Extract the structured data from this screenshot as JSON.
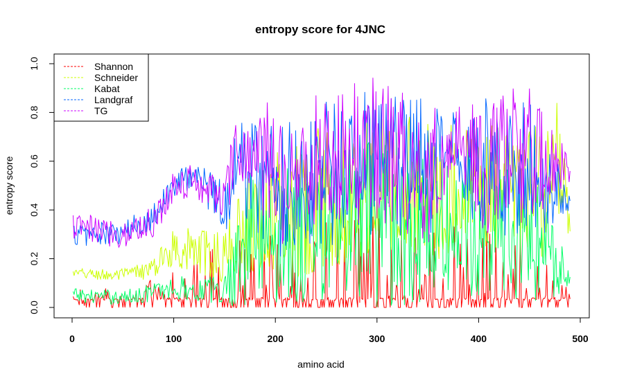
{
  "chart_data": {
    "type": "line",
    "title": "entropy score for  4JNC",
    "xlabel": "amino acid",
    "ylabel": "entropy score",
    "xlim": [
      0,
      500
    ],
    "ylim": [
      0,
      1.0
    ],
    "x_ticks": [
      "0",
      "100",
      "200",
      "300",
      "400",
      "500"
    ],
    "y_ticks": [
      "0.0",
      "0.2",
      "0.4",
      "0.6",
      "0.8",
      "1.0"
    ],
    "legend_position": "top-left",
    "grid": false,
    "n_points": 490,
    "series": [
      {
        "name": "Shannon",
        "color": "#ff0000",
        "profile": [
          [
            1,
            0.03,
            0.06
          ],
          [
            50,
            0.03,
            0.06
          ],
          [
            100,
            0.03,
            0.12
          ],
          [
            150,
            0.04,
            0.25
          ],
          [
            200,
            0.03,
            0.3
          ],
          [
            250,
            0.03,
            0.32
          ],
          [
            300,
            0.03,
            0.38
          ],
          [
            350,
            0.03,
            0.33
          ],
          [
            400,
            0.03,
            0.3
          ],
          [
            450,
            0.03,
            0.3
          ],
          [
            490,
            0.03,
            0.15
          ]
        ]
      },
      {
        "name": "Schneider",
        "color": "#ccff00",
        "profile": [
          [
            1,
            0.14,
            0.02
          ],
          [
            50,
            0.13,
            0.03
          ],
          [
            80,
            0.16,
            0.04
          ],
          [
            100,
            0.25,
            0.08
          ],
          [
            150,
            0.2,
            0.12
          ],
          [
            170,
            0.35,
            0.2
          ],
          [
            200,
            0.38,
            0.28
          ],
          [
            250,
            0.45,
            0.3
          ],
          [
            300,
            0.5,
            0.3
          ],
          [
            350,
            0.48,
            0.3
          ],
          [
            400,
            0.5,
            0.25
          ],
          [
            450,
            0.45,
            0.3
          ],
          [
            480,
            0.55,
            0.3
          ],
          [
            490,
            0.3,
            0.05
          ]
        ]
      },
      {
        "name": "Kabat",
        "color": "#00ff66",
        "profile": [
          [
            1,
            0.05,
            0.03
          ],
          [
            50,
            0.04,
            0.03
          ],
          [
            100,
            0.08,
            0.05
          ],
          [
            150,
            0.07,
            0.06
          ],
          [
            170,
            0.3,
            0.3
          ],
          [
            200,
            0.3,
            0.3
          ],
          [
            250,
            0.3,
            0.32
          ],
          [
            300,
            0.35,
            0.35
          ],
          [
            350,
            0.3,
            0.3
          ],
          [
            400,
            0.35,
            0.3
          ],
          [
            450,
            0.3,
            0.3
          ],
          [
            490,
            0.12,
            0.05
          ]
        ]
      },
      {
        "name": "Landgraf",
        "color": "#0066ff",
        "profile": [
          [
            1,
            0.3,
            0.05
          ],
          [
            50,
            0.3,
            0.05
          ],
          [
            80,
            0.38,
            0.06
          ],
          [
            100,
            0.5,
            0.06
          ],
          [
            120,
            0.55,
            0.06
          ],
          [
            150,
            0.42,
            0.12
          ],
          [
            165,
            0.6,
            0.2
          ],
          [
            200,
            0.5,
            0.3
          ],
          [
            250,
            0.55,
            0.3
          ],
          [
            300,
            0.6,
            0.3
          ],
          [
            350,
            0.55,
            0.3
          ],
          [
            370,
            0.7,
            0.1
          ],
          [
            400,
            0.6,
            0.3
          ],
          [
            450,
            0.55,
            0.3
          ],
          [
            490,
            0.44,
            0.05
          ]
        ]
      },
      {
        "name": "TG",
        "color": "#cc00ff",
        "profile": [
          [
            1,
            0.33,
            0.06
          ],
          [
            50,
            0.3,
            0.06
          ],
          [
            80,
            0.35,
            0.07
          ],
          [
            100,
            0.5,
            0.06
          ],
          [
            120,
            0.52,
            0.07
          ],
          [
            150,
            0.45,
            0.1
          ],
          [
            165,
            0.65,
            0.2
          ],
          [
            200,
            0.55,
            0.3
          ],
          [
            250,
            0.6,
            0.3
          ],
          [
            300,
            0.65,
            0.3
          ],
          [
            350,
            0.55,
            0.3
          ],
          [
            380,
            0.7,
            0.15
          ],
          [
            400,
            0.6,
            0.3
          ],
          [
            450,
            0.6,
            0.3
          ],
          [
            490,
            0.57,
            0.05
          ]
        ]
      }
    ]
  }
}
